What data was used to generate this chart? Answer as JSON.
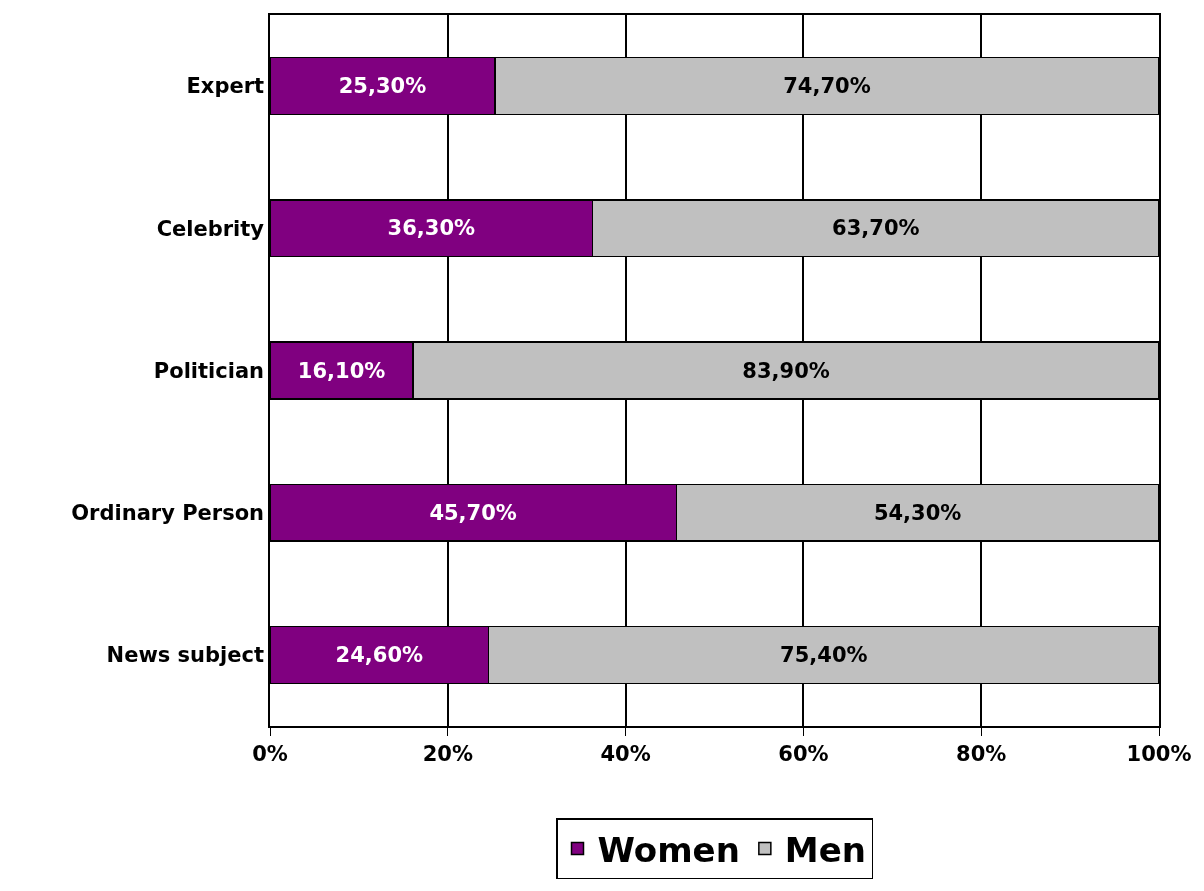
{
  "chart_data": {
    "type": "bar",
    "orientation": "horizontal",
    "stacked": true,
    "categories": [
      "Expert",
      "Celebrity",
      "Politician",
      "Ordinary Person",
      "News subject"
    ],
    "series": [
      {
        "name": "Women",
        "color": "#800080",
        "values": [
          25.3,
          36.3,
          16.1,
          45.7,
          24.6
        ],
        "value_labels": [
          "25,30%",
          "36,30%",
          "16,10%",
          "45,70%",
          "24,60%"
        ]
      },
      {
        "name": "Men",
        "color": "#c0c0c0",
        "values": [
          74.7,
          63.7,
          83.9,
          54.3,
          75.4
        ],
        "value_labels": [
          "74,70%",
          "63,70%",
          "83,90%",
          "54,30%",
          "75,40%"
        ]
      }
    ],
    "xlim": [
      0,
      100
    ],
    "xticks": [
      {
        "value": 0,
        "label": "0%"
      },
      {
        "value": 20,
        "label": "20%"
      },
      {
        "value": 40,
        "label": "40%"
      },
      {
        "value": 60,
        "label": "60%"
      },
      {
        "value": 80,
        "label": "80%"
      },
      {
        "value": 100,
        "label": "100%"
      }
    ],
    "grid": "x",
    "legend": "bottom"
  }
}
